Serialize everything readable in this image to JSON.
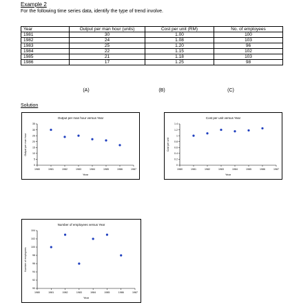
{
  "example_heading": "Example 2",
  "instruction": "For the following time series data, identify the type of trend involve.",
  "table": {
    "headers": [
      "Year",
      "Output per man hour (units)",
      "Cost per unit (RM)",
      "No. of employees"
    ],
    "rows": [
      [
        "1981",
        "30",
        "1.00",
        "100"
      ],
      [
        "1982",
        "24",
        "1.08",
        "103"
      ],
      [
        "1983",
        "25",
        "1.20",
        "96"
      ],
      [
        "1984",
        "22",
        "1.15",
        "102"
      ],
      [
        "1985",
        "21",
        "1.18",
        "103"
      ],
      [
        "1986",
        "17",
        "1.25",
        "98"
      ]
    ],
    "column_labels": [
      "(A)",
      "(B)",
      "(C)"
    ]
  },
  "solution_heading": "Solution",
  "chart_data": [
    {
      "type": "scatter",
      "title": "Output per man hour versus Year",
      "xlabel": "Year",
      "ylabel": "Output per man hour",
      "x": [
        1981,
        1982,
        1983,
        1984,
        1985,
        1986
      ],
      "y": [
        30,
        24,
        25,
        22,
        21,
        17
      ],
      "xticks": [
        1980,
        1981,
        1982,
        1983,
        1984,
        1985,
        1986,
        1987
      ],
      "yticks": [
        0,
        5,
        10,
        15,
        20,
        25,
        30,
        35
      ],
      "ylim": [
        0,
        35
      ],
      "point_color": "#1f3fbf"
    },
    {
      "type": "scatter",
      "title": "Cost per unit versus Year",
      "xlabel": "Year",
      "ylabel": "Cost per unit",
      "x": [
        1981,
        1982,
        1983,
        1984,
        1985,
        1986
      ],
      "y": [
        1.0,
        1.08,
        1.2,
        1.15,
        1.18,
        1.25
      ],
      "xticks": [
        1980,
        1981,
        1982,
        1983,
        1984,
        1985,
        1986,
        1987
      ],
      "yticks": [
        0,
        0.2,
        0.4,
        0.6,
        0.8,
        1,
        1.2,
        1.4
      ],
      "ylim": [
        0,
        1.4
      ],
      "point_color": "#1f3fbf"
    },
    {
      "type": "scatter",
      "title": "Number of employees versus Year",
      "xlabel": "Year",
      "ylabel": "Number of employees",
      "x": [
        1981,
        1982,
        1983,
        1984,
        1985,
        1986
      ],
      "y": [
        100,
        103,
        96,
        102,
        103,
        98
      ],
      "xticks": [
        1980,
        1981,
        1982,
        1983,
        1984,
        1985,
        1986,
        1987
      ],
      "yticks": [
        90,
        92,
        94,
        96,
        98,
        100,
        102,
        104
      ],
      "ylim": [
        90,
        104
      ],
      "point_color": "#1f3fbf"
    }
  ]
}
